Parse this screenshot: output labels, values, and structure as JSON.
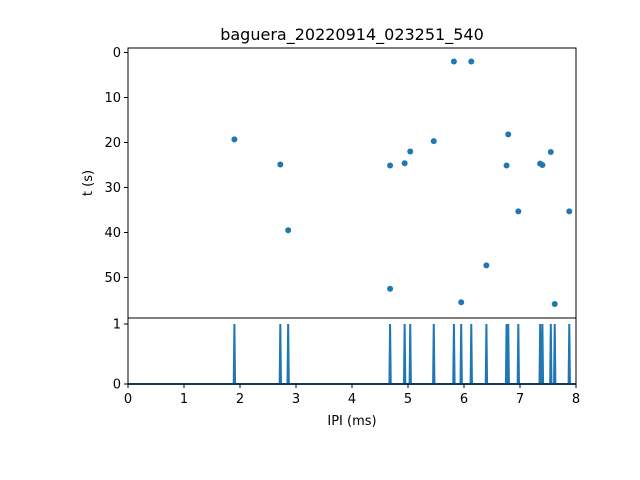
{
  "chart_data": [
    {
      "type": "scatter",
      "title": "baguera_20220914_023251_540",
      "xlabel": "",
      "ylabel": "t (s)",
      "xlim": [
        0,
        8
      ],
      "ylim": [
        59,
        -1
      ],
      "y_inverted": true,
      "yticks": [
        0,
        10,
        20,
        30,
        40,
        50
      ],
      "color": "#1f77b4",
      "points": [
        {
          "x": 1.9,
          "y": 19.3
        },
        {
          "x": 2.72,
          "y": 24.9
        },
        {
          "x": 2.86,
          "y": 39.5
        },
        {
          "x": 4.68,
          "y": 25.1
        },
        {
          "x": 4.68,
          "y": 52.5
        },
        {
          "x": 4.94,
          "y": 24.6
        },
        {
          "x": 5.04,
          "y": 22.0
        },
        {
          "x": 5.46,
          "y": 19.7
        },
        {
          "x": 5.82,
          "y": 2.0
        },
        {
          "x": 5.95,
          "y": 55.5
        },
        {
          "x": 6.13,
          "y": 2.0
        },
        {
          "x": 6.4,
          "y": 47.3
        },
        {
          "x": 6.76,
          "y": 25.1
        },
        {
          "x": 6.79,
          "y": 18.2
        },
        {
          "x": 6.97,
          "y": 35.3
        },
        {
          "x": 7.36,
          "y": 24.7
        },
        {
          "x": 7.4,
          "y": 25.0
        },
        {
          "x": 7.55,
          "y": 22.1
        },
        {
          "x": 7.62,
          "y": 55.9
        },
        {
          "x": 7.88,
          "y": 35.3
        }
      ]
    },
    {
      "type": "line",
      "xlabel": "IPI (ms)",
      "ylabel": "",
      "xlim": [
        0,
        8
      ],
      "ylim": [
        0,
        1.1
      ],
      "xticks": [
        0,
        1,
        2,
        3,
        4,
        5,
        6,
        7,
        8
      ],
      "yticks": [
        0,
        1
      ],
      "color": "#1f77b4",
      "spikes_x": [
        1.9,
        2.72,
        2.86,
        4.68,
        4.94,
        5.04,
        5.46,
        5.82,
        5.95,
        6.13,
        6.4,
        6.76,
        6.79,
        6.97,
        7.36,
        7.4,
        7.55,
        7.62,
        7.88
      ],
      "spike_value": 1
    }
  ]
}
